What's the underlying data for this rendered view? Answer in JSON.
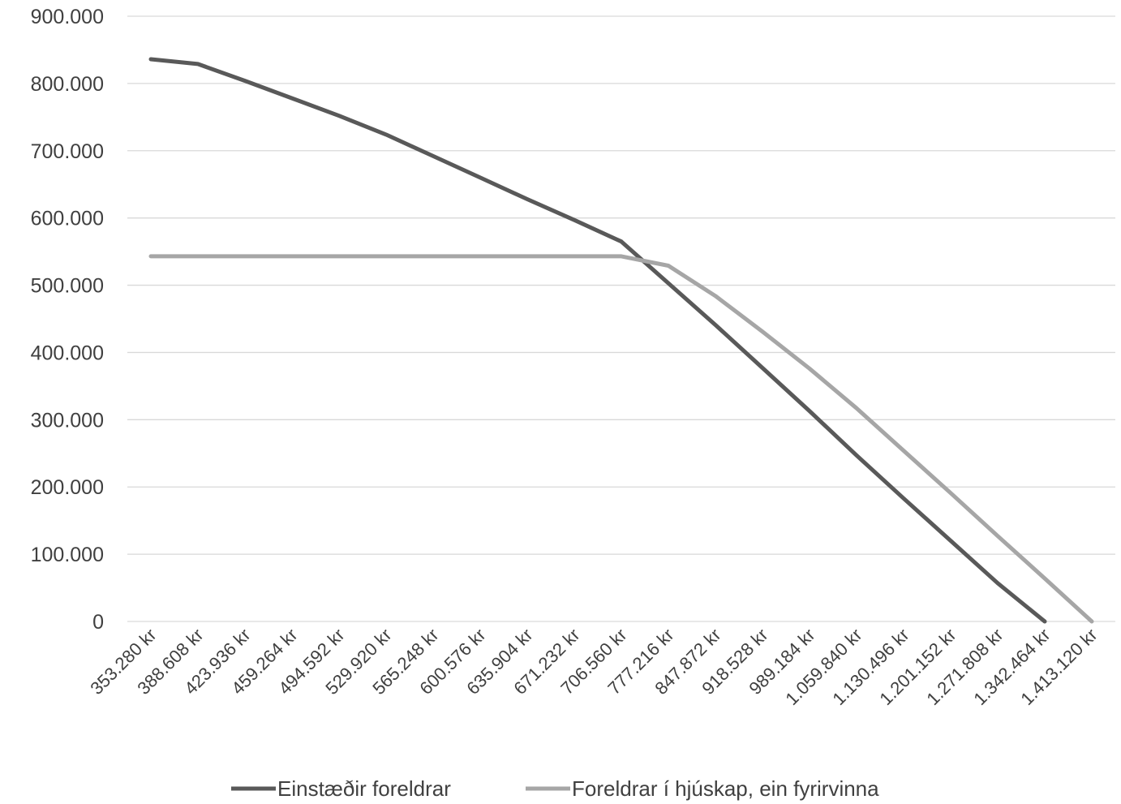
{
  "chart_data": {
    "type": "line",
    "title": "",
    "xlabel": "",
    "ylabel": "",
    "categories": [
      "353.280 kr",
      "388.608 kr",
      "423.936 kr",
      "459.264 kr",
      "494.592 kr",
      "529.920 kr",
      "565.248 kr",
      "600.576 kr",
      "635.904 kr",
      "671.232 kr",
      "706.560 kr",
      "777.216 kr",
      "847.872 kr",
      "918.528 kr",
      "989.184 kr",
      "1.059.840 kr",
      "1.130.496 kr",
      "1.201.152 kr",
      "1.271.808 kr",
      "1.342.464 kr",
      "1.413.120 kr"
    ],
    "series": [
      {
        "name": "Einstæðir foreldrar",
        "color": "#595959",
        "values": [
          836000,
          829000,
          804000,
          778000,
          752000,
          724000,
          692000,
          660000,
          628000,
          597000,
          565000,
          503000,
          441000,
          377000,
          313000,
          247000,
          183000,
          120000,
          57000,
          0,
          null
        ]
      },
      {
        "name": "Foreldrar í hjúskap, ein fyrirvinna",
        "color": "#a6a6a6",
        "values": [
          543000,
          543000,
          543000,
          543000,
          543000,
          543000,
          543000,
          543000,
          543000,
          543000,
          543000,
          529000,
          484000,
          431000,
          376000,
          317000,
          254000,
          191000,
          127000,
          64000,
          0
        ]
      }
    ],
    "yticks": [
      "0",
      "100.000",
      "200.000",
      "300.000",
      "400.000",
      "500.000",
      "600.000",
      "700.000",
      "800.000",
      "900.000"
    ],
    "ylim": [
      0,
      900000
    ],
    "grid": true,
    "gridcolor": "#d9d9d9",
    "legend": "bottom"
  }
}
